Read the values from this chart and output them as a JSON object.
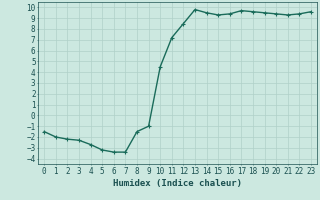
{
  "x": [
    0,
    1,
    2,
    3,
    4,
    5,
    6,
    7,
    8,
    9,
    10,
    11,
    12,
    13,
    14,
    15,
    16,
    17,
    18,
    19,
    20,
    21,
    22,
    23
  ],
  "y": [
    -1.5,
    -2.0,
    -2.2,
    -2.3,
    -2.7,
    -3.2,
    -3.4,
    -3.4,
    -1.5,
    -1.0,
    4.5,
    7.2,
    8.5,
    9.8,
    9.5,
    9.3,
    9.4,
    9.7,
    9.6,
    9.5,
    9.4,
    9.3,
    9.4,
    9.6
  ],
  "line_color": "#1a6b5a",
  "marker": "+",
  "marker_size": 3,
  "marker_linewidth": 0.8,
  "bg_color": "#cce8e0",
  "grid_color_major": "#b0d0c8",
  "grid_color_minor": "#b0d0c8",
  "xlabel": "Humidex (Indice chaleur)",
  "xlim": [
    -0.5,
    23.5
  ],
  "ylim": [
    -4.5,
    10.5
  ],
  "yticks": [
    -4,
    -3,
    -2,
    -1,
    0,
    1,
    2,
    3,
    4,
    5,
    6,
    7,
    8,
    9,
    10
  ],
  "xticks": [
    0,
    1,
    2,
    3,
    4,
    5,
    6,
    7,
    8,
    9,
    10,
    11,
    12,
    13,
    14,
    15,
    16,
    17,
    18,
    19,
    20,
    21,
    22,
    23
  ],
  "font_color": "#1a5050",
  "tick_fontsize": 5.5,
  "label_fontsize": 6.5,
  "linewidth": 1.0
}
